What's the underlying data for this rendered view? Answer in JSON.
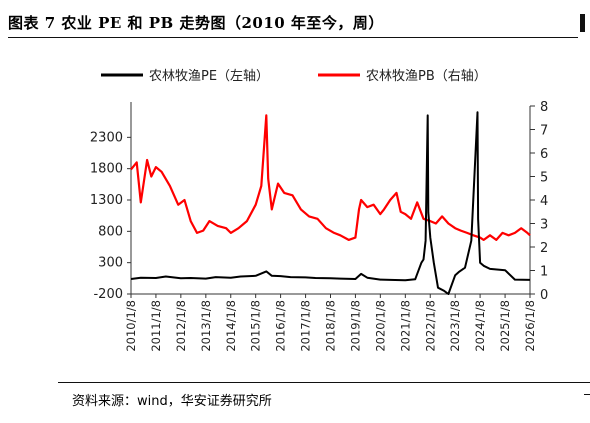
{
  "header": {
    "title": "图表 7 农业 PE 和 PB 走势图（2010 年至今，周）"
  },
  "footer": {
    "source": "资料来源：wind，华安证券研究所"
  },
  "chart_data": {
    "type": "line",
    "title": "图表 7 农业 PE 和 PB 走势图（2010 年至今，周）",
    "legend_position": "top",
    "grid": false,
    "x_tick_labels": [
      "2010/1/8",
      "2011/1/8",
      "2012/1/8",
      "2013/1/8",
      "2014/1/8",
      "2015/1/8",
      "2016/1/8",
      "2017/1/8",
      "2018/1/8",
      "2019/1/8",
      "2020/1/8",
      "2021/1/8",
      "2022/1/8",
      "2023/1/8",
      "2024/1/8",
      "2025/1/8",
      "2026/1/8"
    ],
    "x_range": [
      "2010/1/8",
      "2026/1/8"
    ],
    "y_left": {
      "range": [
        -200,
        2800
      ],
      "ticks": [
        "-200",
        "300",
        "800",
        "1300",
        "1800",
        "2300"
      ]
    },
    "y_right": {
      "range": [
        0,
        8
      ],
      "ticks": [
        "0",
        "1",
        "2",
        "3",
        "4",
        "5",
        "6",
        "7",
        "8"
      ]
    },
    "series": [
      {
        "name": "农林牧渔PE（左轴）",
        "axis": "left",
        "color": "#000000",
        "points": [
          [
            "2010/1/8",
            40
          ],
          [
            "2010/6/1",
            60
          ],
          [
            "2011/1/8",
            55
          ],
          [
            "2011/6/1",
            80
          ],
          [
            "2012/1/8",
            50
          ],
          [
            "2012/6/1",
            55
          ],
          [
            "2013/1/8",
            45
          ],
          [
            "2013/6/1",
            70
          ],
          [
            "2014/1/8",
            60
          ],
          [
            "2014/6/1",
            80
          ],
          [
            "2015/1/8",
            90
          ],
          [
            "2015/6/12",
            160
          ],
          [
            "2015/9/1",
            90
          ],
          [
            "2016/1/8",
            85
          ],
          [
            "2016/6/1",
            70
          ],
          [
            "2017/1/8",
            65
          ],
          [
            "2017/6/1",
            55
          ],
          [
            "2018/1/8",
            50
          ],
          [
            "2018/6/1",
            45
          ],
          [
            "2019/1/8",
            40
          ],
          [
            "2019/4/1",
            120
          ],
          [
            "2019/7/1",
            60
          ],
          [
            "2020/1/8",
            30
          ],
          [
            "2020/6/1",
            25
          ],
          [
            "2021/1/8",
            20
          ],
          [
            "2021/6/1",
            35
          ],
          [
            "2021/9/1",
            300
          ],
          [
            "2021/10/1",
            350
          ],
          [
            "2021/11/1",
            650
          ],
          [
            "2021/12/1",
            2650
          ],
          [
            "2021/12/10",
            1100
          ],
          [
            "2022/1/8",
            700
          ],
          [
            "2022/3/1",
            300
          ],
          [
            "2022/5/1",
            -100
          ],
          [
            "2022/8/1",
            -150
          ],
          [
            "2022/10/1",
            -200
          ],
          [
            "2023/1/8",
            100
          ],
          [
            "2023/3/1",
            150
          ],
          [
            "2023/6/1",
            220
          ],
          [
            "2023/9/1",
            650
          ],
          [
            "2023/12/1",
            2700
          ],
          [
            "2023/12/10",
            1000
          ],
          [
            "2024/1/8",
            300
          ],
          [
            "2024/3/1",
            250
          ],
          [
            "2024/6/1",
            200
          ],
          [
            "2025/1/8",
            180
          ],
          [
            "2025/6/1",
            30
          ],
          [
            "2026/1/8",
            25
          ]
        ]
      },
      {
        "name": "农林牧渔PB（右轴）",
        "axis": "right",
        "color": "#ff0000",
        "points": [
          [
            "2010/1/8",
            5.3
          ],
          [
            "2010/4/1",
            5.6
          ],
          [
            "2010/6/1",
            3.9
          ],
          [
            "2010/9/1",
            5.7
          ],
          [
            "2010/11/1",
            5.0
          ],
          [
            "2011/1/8",
            5.4
          ],
          [
            "2011/4/1",
            5.2
          ],
          [
            "2011/8/1",
            4.6
          ],
          [
            "2011/12/1",
            3.8
          ],
          [
            "2012/3/1",
            4.0
          ],
          [
            "2012/6/1",
            3.1
          ],
          [
            "2012/9/1",
            2.6
          ],
          [
            "2012/12/1",
            2.7
          ],
          [
            "2013/3/1",
            3.1
          ],
          [
            "2013/7/1",
            2.9
          ],
          [
            "2013/11/1",
            2.8
          ],
          [
            "2014/1/8",
            2.6
          ],
          [
            "2014/5/1",
            2.8
          ],
          [
            "2014/9/1",
            3.1
          ],
          [
            "2015/1/8",
            3.8
          ],
          [
            "2015/4/1",
            4.6
          ],
          [
            "2015/6/12",
            7.6
          ],
          [
            "2015/7/10",
            4.9
          ],
          [
            "2015/9/1",
            3.6
          ],
          [
            "2015/12/1",
            4.7
          ],
          [
            "2016/3/1",
            4.3
          ],
          [
            "2016/7/1",
            4.2
          ],
          [
            "2016/11/1",
            3.6
          ],
          [
            "2017/3/1",
            3.3
          ],
          [
            "2017/7/1",
            3.2
          ],
          [
            "2017/11/1",
            2.8
          ],
          [
            "2018/3/1",
            2.6
          ],
          [
            "2018/6/1",
            2.5
          ],
          [
            "2018/10/1",
            2.3
          ],
          [
            "2019/1/8",
            2.4
          ],
          [
            "2019/3/1",
            3.6
          ],
          [
            "2019/4/1",
            4.0
          ],
          [
            "2019/7/1",
            3.7
          ],
          [
            "2019/10/1",
            3.8
          ],
          [
            "2020/1/8",
            3.4
          ],
          [
            "2020/3/1",
            3.6
          ],
          [
            "2020/6/1",
            4.0
          ],
          [
            "2020/9/1",
            4.3
          ],
          [
            "2020/11/1",
            3.5
          ],
          [
            "2021/1/8",
            3.4
          ],
          [
            "2021/4/1",
            3.2
          ],
          [
            "2021/7/1",
            3.9
          ],
          [
            "2021/10/1",
            3.2
          ],
          [
            "2022/1/8",
            3.1
          ],
          [
            "2022/4/1",
            3.0
          ],
          [
            "2022/7/1",
            3.3
          ],
          [
            "2022/10/1",
            3.0
          ],
          [
            "2023/1/8",
            2.8
          ],
          [
            "2023/4/1",
            2.7
          ],
          [
            "2023/7/1",
            2.6
          ],
          [
            "2023/10/1",
            2.5
          ],
          [
            "2024/1/8",
            2.4
          ],
          [
            "2024/3/1",
            2.3
          ],
          [
            "2024/6/1",
            2.5
          ],
          [
            "2024/9/1",
            2.3
          ],
          [
            "2024/12/1",
            2.6
          ],
          [
            "2025/3/1",
            2.5
          ],
          [
            "2025/6/1",
            2.6
          ],
          [
            "2025/9/1",
            2.8
          ],
          [
            "2025/12/1",
            2.6
          ],
          [
            "2026/1/8",
            2.5
          ]
        ]
      }
    ]
  }
}
